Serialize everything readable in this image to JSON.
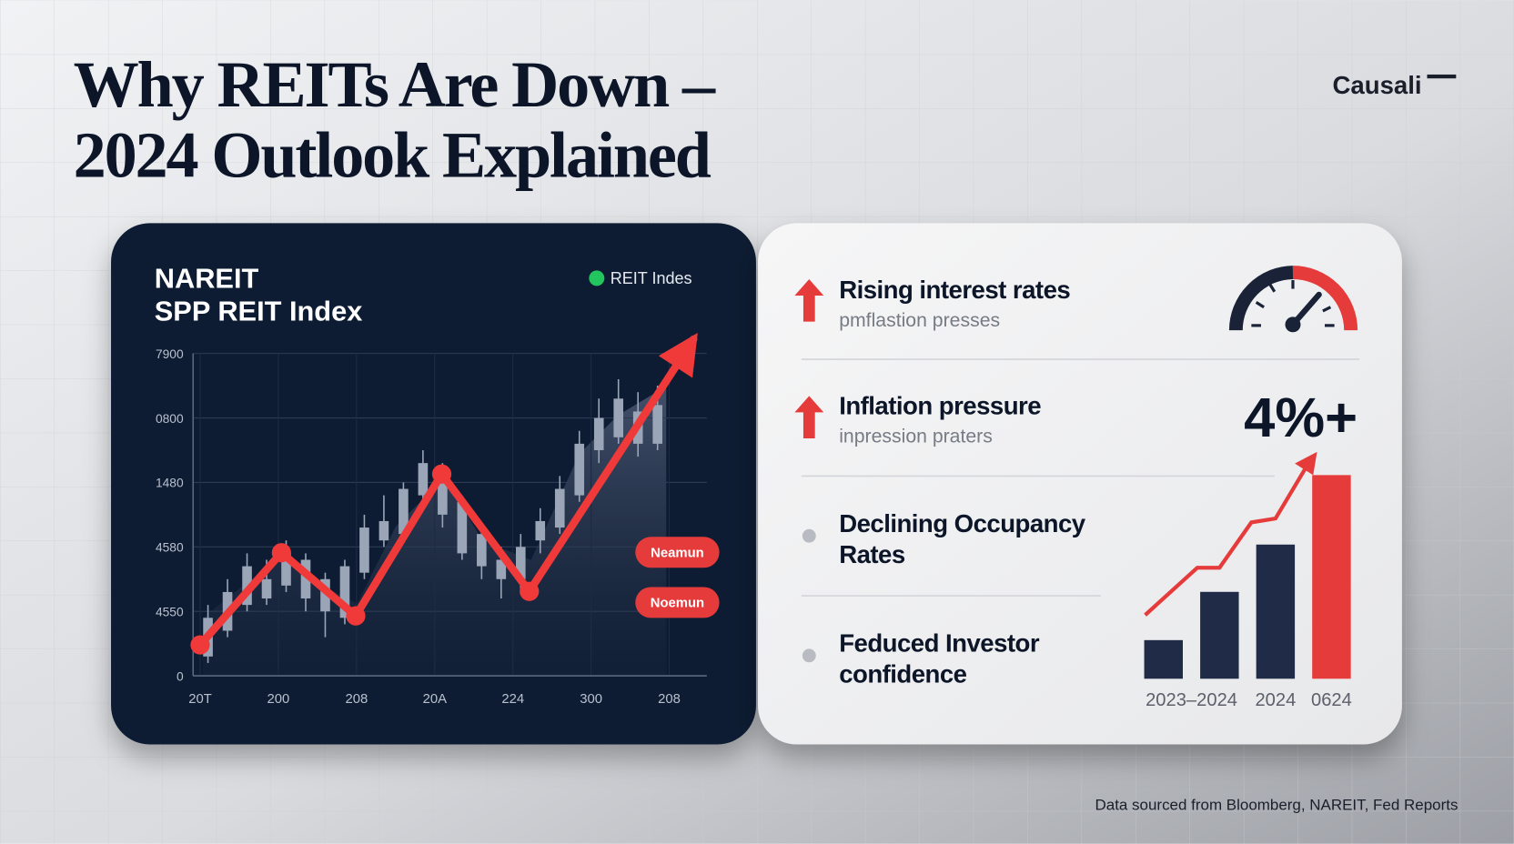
{
  "header": {
    "title": [
      "Why REITs Are Down –",
      "2024 Outlook Explained"
    ],
    "brand": "Causali"
  },
  "chart_data": [
    {
      "type": "candlestick",
      "title": [
        "NAREIT",
        "SPP REIT Index"
      ],
      "xlim": [
        -0.09,
        6.48
      ],
      "xticks": [
        {
          "value": 0,
          "label": "20T"
        },
        {
          "value": 1,
          "label": "200"
        },
        {
          "value": 2,
          "label": "208"
        },
        {
          "value": 3,
          "label": "20A"
        },
        {
          "value": 4,
          "label": "224"
        },
        {
          "value": 5,
          "label": "300"
        },
        {
          "value": 6,
          "label": "208"
        }
      ],
      "ylim": [
        0,
        5
      ],
      "yticks": [
        0,
        {
          "value": 1,
          "label": "4550"
        },
        {
          "value": 2,
          "label": "4580"
        },
        {
          "value": 3,
          "label": "1480"
        },
        {
          "value": 4,
          "label": "0800"
        },
        {
          "value": 5,
          "label": "7900"
        }
      ],
      "grid": true,
      "candles": {
        "color": "#9aa5b8",
        "x": [
          0.1,
          0.35,
          0.6,
          0.85,
          1.1,
          1.35,
          1.6,
          1.85,
          2.1,
          2.35,
          2.6,
          2.85,
          3.1,
          3.35,
          3.6,
          3.85,
          4.1,
          4.35,
          4.6,
          4.85,
          5.1,
          5.35,
          5.6,
          5.85
        ],
        "open": [
          0.3,
          0.7,
          1.1,
          1.5,
          1.4,
          1.8,
          1.5,
          0.9,
          1.6,
          2.1,
          2.2,
          2.8,
          3.2,
          2.7,
          2.2,
          1.8,
          1.5,
          2.1,
          2.3,
          2.8,
          3.5,
          3.7,
          4.1,
          3.6
        ],
        "close": [
          0.9,
          1.3,
          1.7,
          1.2,
          1.9,
          1.2,
          1.0,
          1.7,
          2.3,
          2.4,
          2.9,
          3.3,
          2.5,
          1.9,
          1.7,
          1.5,
          2.0,
          2.4,
          2.9,
          3.6,
          4.0,
          4.3,
          3.6,
          4.2
        ],
        "high": [
          1.1,
          1.5,
          1.9,
          1.8,
          2.1,
          1.9,
          1.6,
          1.8,
          2.5,
          2.8,
          3.0,
          3.5,
          3.3,
          2.8,
          2.3,
          2.0,
          2.2,
          2.6,
          3.1,
          3.8,
          4.3,
          4.6,
          4.4,
          4.5
        ],
        "low": [
          0.2,
          0.6,
          1.0,
          1.1,
          1.3,
          1.0,
          0.6,
          0.8,
          1.5,
          2.0,
          2.1,
          2.6,
          2.3,
          1.8,
          1.5,
          1.2,
          1.3,
          1.9,
          2.2,
          2.7,
          3.3,
          3.6,
          3.4,
          3.5
        ]
      },
      "series": [
        {
          "name": "REIT Indes",
          "color": "#f03a3a",
          "x": [
            0,
            1.04,
            1.99,
            3.09,
            4.21,
            6.31
          ],
          "values": [
            0.48,
            1.91,
            0.93,
            3.13,
            1.31,
            5.22
          ]
        }
      ],
      "legend_marker_color": "#22c55e",
      "annotations": [
        "Neamun",
        "Noemun"
      ]
    },
    {
      "type": "bar",
      "categories": [
        "2023–2024",
        null,
        "2024",
        "0624"
      ],
      "values": [
        40,
        90,
        139,
        211
      ],
      "colors": [
        "#1f2b47",
        "#1f2b47",
        "#1f2b47",
        "#e63b3b"
      ]
    }
  ],
  "factors": [
    {
      "title": [
        "Rising interest rates"
      ],
      "subtitle": "pmflastion presses"
    },
    {
      "title": [
        "Inflation pressure"
      ],
      "subtitle": "inpression praters"
    },
    {
      "title": [
        "Declining Occupancy",
        "Rates"
      ]
    },
    {
      "title": [
        "Feduced Investor",
        "confidence"
      ]
    }
  ],
  "stat": "4%+",
  "footer": "Data sourced from Bloomberg, NAREIT, Fed Reports"
}
